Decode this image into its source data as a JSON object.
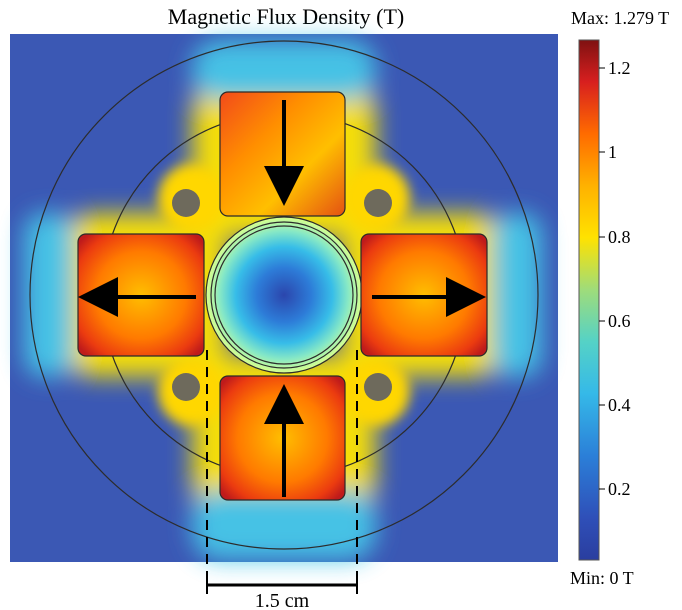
{
  "title": "Magnetic Flux Density (T)",
  "colorbar": {
    "max_label": "Max: 1.279 T",
    "min_label": "Min: 0 T",
    "tick_labels": [
      "1.2",
      "1",
      "0.8",
      "0.6",
      "0.4",
      "0.2"
    ]
  },
  "scale_bar": {
    "label": "1.5 cm"
  },
  "colors": {
    "background_field": "#3a56b3",
    "colormap_low": "#2b3c9e",
    "colormap_mid": "#f2f000",
    "colormap_high": "#8f0f0f",
    "outline": "#2a2a2a",
    "arrow": "#000000"
  }
}
